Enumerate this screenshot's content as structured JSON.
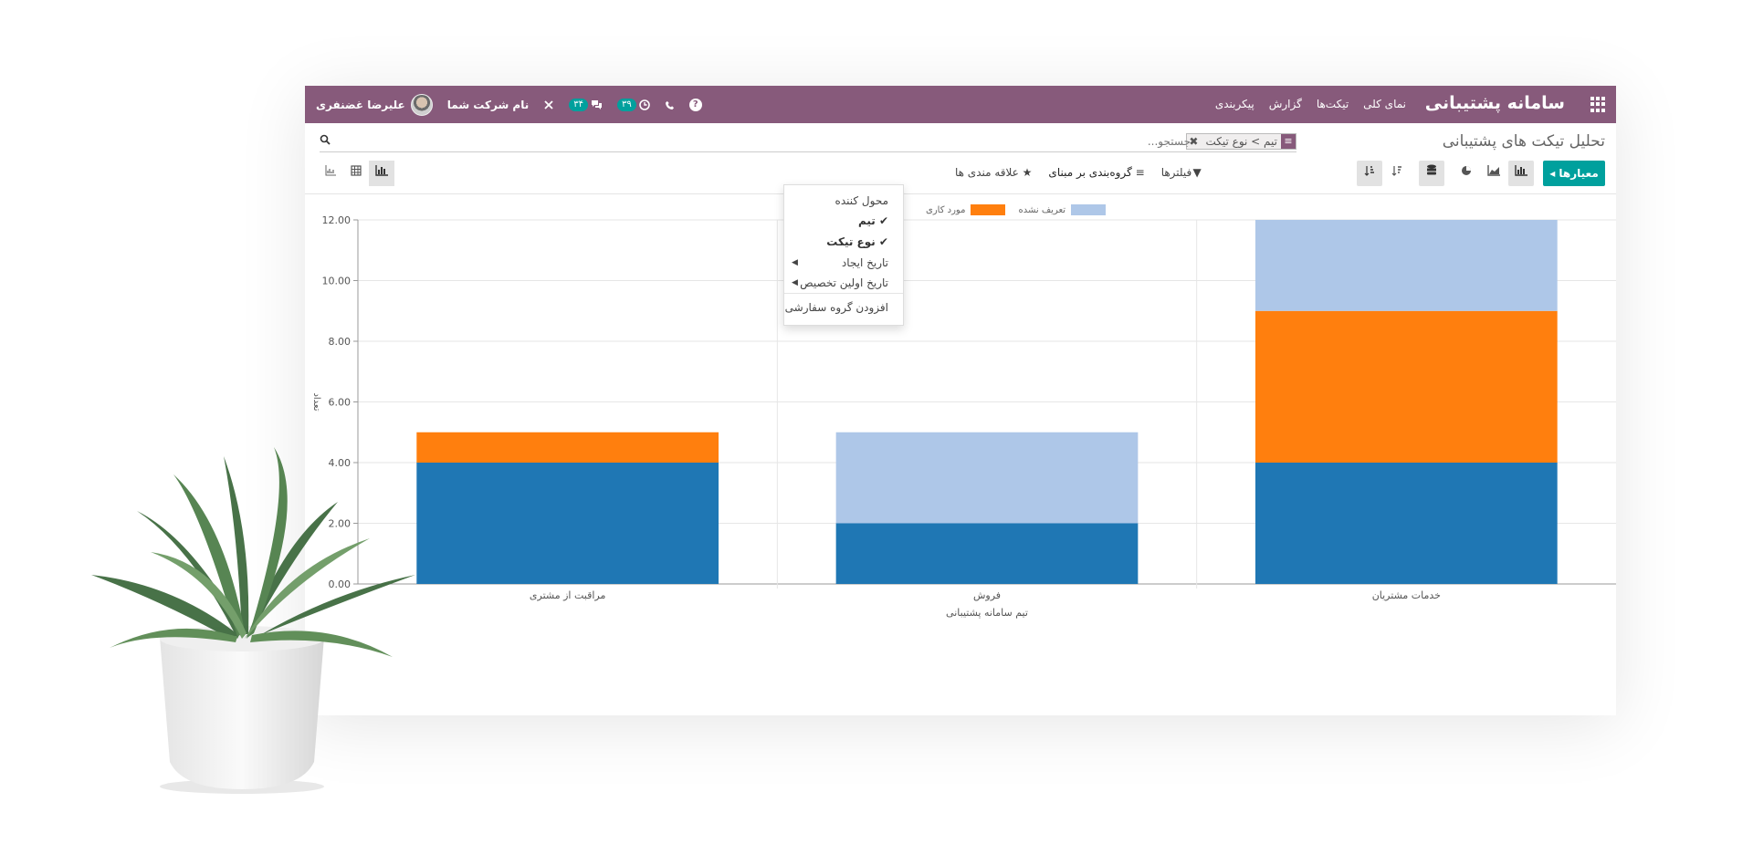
{
  "navbar": {
    "app_title": "سامانه پشتیبانی",
    "menu": [
      "نمای کلی",
      "تیکت‌ها",
      "گزارش",
      "پیکربندی"
    ],
    "user_name": "علیرضا غضنفری",
    "company": "نام شرکت شما",
    "messages_badge": "۳۴",
    "activities_badge": "۳۹",
    "help": "?"
  },
  "page_title": "تحلیل تیکت های پشتیبانی",
  "search": {
    "facet_value": "تیم > نوع تیکت",
    "placeholder": "جستجو..."
  },
  "toolbar": {
    "measures_label": "معیارها",
    "filters_label": "فیلترها",
    "groupby_label": "گروه‌بندی بر مبنای",
    "favorites_label": "علاقه مندی ها"
  },
  "groupby_menu": {
    "items": [
      {
        "label": "محول کننده",
        "checked": false,
        "sub": false
      },
      {
        "label": "تیم",
        "checked": true,
        "sub": false
      },
      {
        "label": "نوع تیکت",
        "checked": true,
        "sub": false
      },
      {
        "label": "تاریخ ایجاد",
        "checked": false,
        "sub": true
      },
      {
        "label": "تاریخ اولین تخصیص",
        "checked": false,
        "sub": true
      }
    ],
    "custom_group": "افزودن گروه سفارشی"
  },
  "icons": {
    "apps": "apps-grid-icon",
    "search": "search-icon",
    "phone": "phone-icon",
    "clock": "clock-icon",
    "chat": "chat-icon",
    "tools": "tools-icon"
  },
  "colors": {
    "navbar": "#875a7b",
    "primary": "#00a09d",
    "series_blue": "#1f77b4",
    "series_orange": "#ff7f0e",
    "series_lightblue": "#aec7e8"
  },
  "chart_data": {
    "type": "bar",
    "stacked": true,
    "categories": [
      "خدمات مشتریان",
      "فروش",
      "مراقبت از مشتری"
    ],
    "series": [
      {
        "name": "",
        "color": "#1f77b4",
        "values": [
          4,
          2,
          4
        ]
      },
      {
        "name": "مورد کاری",
        "color": "#ff7f0e",
        "values": [
          5,
          0,
          1
        ]
      },
      {
        "name": "تعریف نشده",
        "color": "#aec7e8",
        "values": [
          3,
          3,
          0
        ]
      }
    ],
    "xlabel": "تیم سامانه پشتیبانی",
    "ylabel": "تعداد",
    "ylim": [
      0,
      12
    ],
    "yticks": [
      "0.00",
      "2.00",
      "4.00",
      "6.00",
      "8.00",
      "10.00",
      "12.00"
    ],
    "grid": true,
    "legend": "top"
  }
}
